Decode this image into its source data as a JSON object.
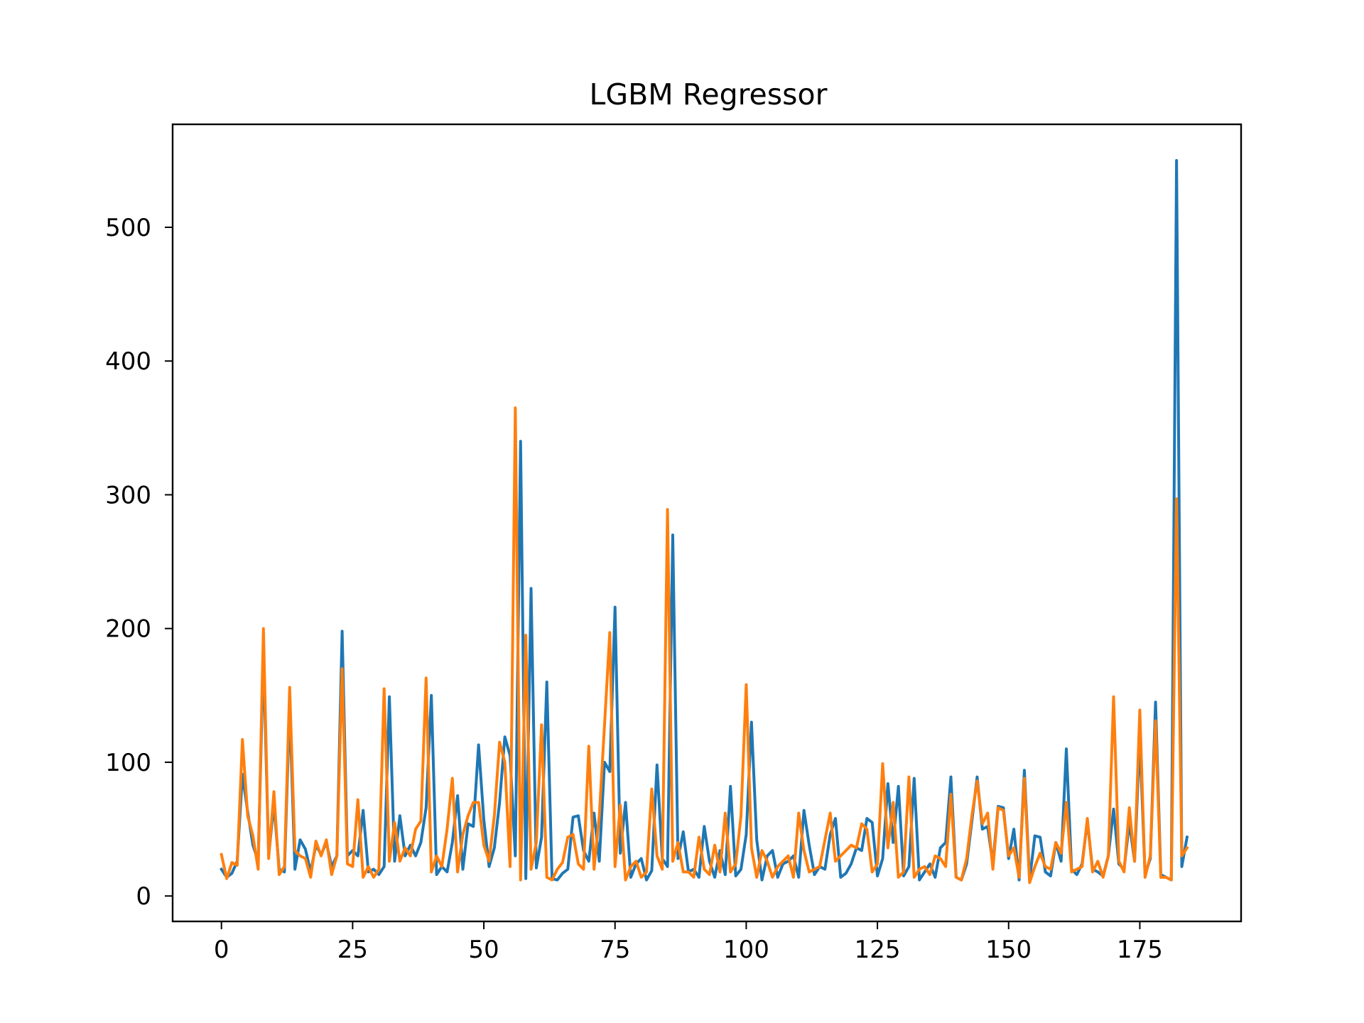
{
  "chart_data": {
    "type": "line",
    "title": "LGBM Regressor",
    "xlabel": "",
    "ylabel": "",
    "xlim": [
      -9.3,
      194.3
    ],
    "ylim": [
      -19,
      577
    ],
    "x_ticks": [
      0,
      25,
      50,
      75,
      100,
      125,
      150,
      175
    ],
    "x_tick_labels": [
      "0",
      "25",
      "50",
      "75",
      "100",
      "125",
      "150",
      "175"
    ],
    "y_ticks": [
      0,
      100,
      200,
      300,
      400,
      500
    ],
    "y_tick_labels": [
      "0",
      "100",
      "200",
      "300",
      "400",
      "500"
    ],
    "grid": false,
    "legend": "none",
    "series": [
      {
        "color": "#1f77b4",
        "values": [
          20,
          14,
          17,
          26,
          91,
          63,
          38,
          26,
          181,
          30,
          69,
          20,
          18,
          142,
          20,
          42,
          35,
          18,
          38,
          31,
          40,
          22,
          30,
          198,
          30,
          34,
          30,
          64,
          18,
          20,
          16,
          22,
          149,
          26,
          60,
          30,
          38,
          30,
          40,
          66,
          150,
          16,
          22,
          18,
          40,
          75,
          20,
          54,
          52,
          113,
          57,
          22,
          36,
          70,
          119,
          105,
          30,
          340,
          13,
          230,
          21,
          44,
          160,
          13,
          12,
          17,
          20,
          59,
          60,
          34,
          26,
          62,
          26,
          100,
          93,
          216,
          32,
          70,
          14,
          24,
          28,
          12,
          19,
          98,
          28,
          22,
          270,
          28,
          48,
          18,
          20,
          14,
          52,
          26,
          14,
          34,
          16,
          82,
          15,
          20,
          46,
          130,
          42,
          12,
          30,
          34,
          14,
          24,
          26,
          30,
          14,
          64,
          38,
          16,
          22,
          20,
          46,
          58,
          14,
          17,
          24,
          36,
          34,
          58,
          55,
          15,
          28,
          84,
          40,
          82,
          15,
          22,
          88,
          12,
          18,
          24,
          14,
          36,
          40,
          89,
          14,
          12,
          24,
          56,
          89,
          50,
          52,
          24,
          67,
          66,
          28,
          50,
          12,
          94,
          12,
          45,
          44,
          18,
          15,
          40,
          26,
          110,
          20,
          16,
          24,
          56,
          20,
          18,
          15,
          30,
          65,
          24,
          20,
          55,
          26,
          118,
          16,
          28,
          145,
          16,
          14,
          12,
          550,
          22,
          44
        ]
      },
      {
        "color": "#ff7f0e",
        "values": [
          31,
          13,
          25,
          23,
          117,
          60,
          45,
          20,
          200,
          28,
          78,
          16,
          22,
          156,
          34,
          30,
          28,
          14,
          41,
          30,
          42,
          16,
          30,
          170,
          24,
          22,
          72,
          14,
          22,
          14,
          20,
          155,
          26,
          55,
          26,
          36,
          30,
          50,
          56,
          163,
          18,
          30,
          22,
          50,
          88,
          18,
          46,
          60,
          70,
          70,
          38,
          26,
          60,
          115,
          100,
          22,
          365,
          12,
          195,
          20,
          40,
          128,
          14,
          12,
          20,
          25,
          44,
          46,
          24,
          20,
          112,
          20,
          60,
          128,
          197,
          22,
          68,
          12,
          22,
          26,
          14,
          18,
          80,
          30,
          20,
          289,
          26,
          40,
          18,
          18,
          14,
          44,
          20,
          16,
          38,
          18,
          62,
          18,
          24,
          60,
          158,
          36,
          14,
          34,
          26,
          14,
          22,
          26,
          30,
          14,
          62,
          34,
          18,
          20,
          22,
          42,
          62,
          26,
          30,
          34,
          38,
          36,
          54,
          50,
          18,
          24,
          99,
          36,
          70,
          14,
          18,
          89,
          14,
          20,
          22,
          16,
          30,
          28,
          22,
          76,
          14,
          12,
          28,
          60,
          86,
          54,
          62,
          20,
          66,
          64,
          30,
          36,
          14,
          88,
          10,
          22,
          32,
          22,
          20,
          40,
          32,
          70,
          18,
          20,
          22,
          58,
          18,
          26,
          14,
          30,
          149,
          26,
          18,
          66,
          26,
          139,
          14,
          30,
          131,
          14,
          14,
          12,
          297,
          30,
          36
        ]
      }
    ]
  }
}
